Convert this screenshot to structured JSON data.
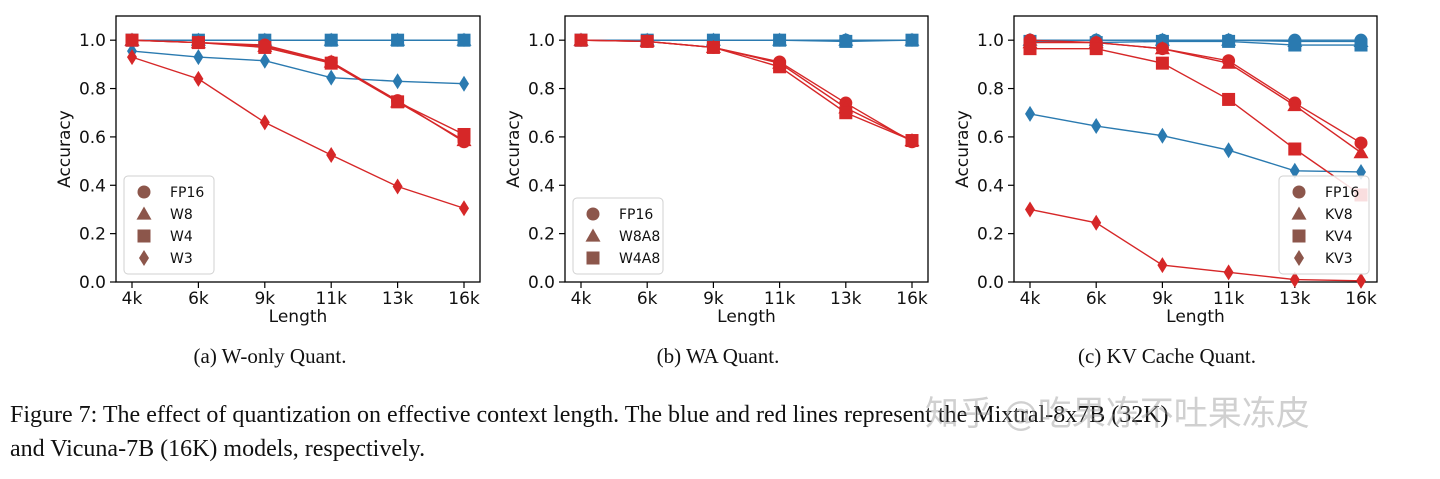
{
  "colors": {
    "blue": "#2a7ab0",
    "red": "#d62728",
    "legend_marker": "#8c564b"
  },
  "subcaptions": [
    "(a) W-only Quant.",
    "(b) WA Quant.",
    "(c) KV Cache Quant."
  ],
  "figure_caption": {
    "line1": "Figure 7: The effect of quantization on effective context length. The blue and red lines represent the Mixtral-8x7B (32K)",
    "line2": "and Vicuna-7B (16K) models, respectively."
  },
  "watermark": "知乎 @吃果冻不吐果冻皮",
  "chart_data": [
    {
      "type": "line",
      "xlabel": "Length",
      "ylabel": "Accuracy",
      "categories": [
        "4k",
        "6k",
        "9k",
        "11k",
        "13k",
        "16k"
      ],
      "yticks": [
        "0.0",
        "0.2",
        "0.4",
        "0.6",
        "0.8",
        "1.0"
      ],
      "ylim": [
        0,
        1.1
      ],
      "legend_position": "lower-left",
      "legend": [
        "FP16",
        "W8",
        "W4",
        "W3"
      ],
      "series": [
        {
          "model": "blue",
          "marker": "circle",
          "values": [
            1.0,
            1.0,
            1.0,
            1.0,
            1.0,
            1.0
          ]
        },
        {
          "model": "blue",
          "marker": "triangle",
          "values": [
            1.0,
            1.0,
            1.0,
            1.0,
            1.0,
            1.0
          ]
        },
        {
          "model": "blue",
          "marker": "square",
          "values": [
            1.0,
            1.0,
            1.0,
            1.0,
            1.0,
            1.0
          ]
        },
        {
          "model": "blue",
          "marker": "diamond",
          "values": [
            0.955,
            0.93,
            0.915,
            0.845,
            0.83,
            0.82
          ]
        },
        {
          "model": "red",
          "marker": "circle",
          "values": [
            1.0,
            0.99,
            0.98,
            0.91,
            0.75,
            0.58
          ]
        },
        {
          "model": "red",
          "marker": "triangle",
          "values": [
            1.0,
            0.99,
            0.975,
            0.91,
            0.745,
            0.585
          ]
        },
        {
          "model": "red",
          "marker": "square",
          "values": [
            1.0,
            0.99,
            0.97,
            0.905,
            0.745,
            0.61
          ]
        },
        {
          "model": "red",
          "marker": "diamond",
          "values": [
            0.93,
            0.84,
            0.66,
            0.525,
            0.395,
            0.305
          ]
        }
      ]
    },
    {
      "type": "line",
      "xlabel": "Length",
      "ylabel": "Accuracy",
      "categories": [
        "4k",
        "6k",
        "9k",
        "11k",
        "13k",
        "16k"
      ],
      "yticks": [
        "0.0",
        "0.2",
        "0.4",
        "0.6",
        "0.8",
        "1.0"
      ],
      "ylim": [
        0,
        1.1
      ],
      "legend_position": "lower-left",
      "legend": [
        "FP16",
        "W8A8",
        "W4A8"
      ],
      "series": [
        {
          "model": "blue",
          "marker": "circle",
          "values": [
            1.0,
            1.0,
            1.0,
            1.0,
            1.0,
            1.0
          ]
        },
        {
          "model": "blue",
          "marker": "triangle",
          "values": [
            1.0,
            1.0,
            1.0,
            1.0,
            1.0,
            1.0
          ]
        },
        {
          "model": "blue",
          "marker": "square",
          "values": [
            1.0,
            1.0,
            1.0,
            1.0,
            0.995,
            1.0
          ]
        },
        {
          "model": "red",
          "marker": "circle",
          "values": [
            1.0,
            0.995,
            0.97,
            0.91,
            0.74,
            0.58
          ]
        },
        {
          "model": "red",
          "marker": "triangle",
          "values": [
            1.0,
            0.995,
            0.97,
            0.905,
            0.72,
            0.585
          ]
        },
        {
          "model": "red",
          "marker": "square",
          "values": [
            1.0,
            0.995,
            0.97,
            0.89,
            0.7,
            0.585
          ]
        }
      ]
    },
    {
      "type": "line",
      "xlabel": "Length",
      "ylabel": "Accuracy",
      "categories": [
        "4k",
        "6k",
        "9k",
        "11k",
        "13k",
        "16k"
      ],
      "yticks": [
        "0.0",
        "0.2",
        "0.4",
        "0.6",
        "0.8",
        "1.0"
      ],
      "ylim": [
        0,
        1.1
      ],
      "legend_position": "lower-right",
      "legend": [
        "FP16",
        "KV8",
        "KV4",
        "KV3"
      ],
      "series": [
        {
          "model": "blue",
          "marker": "circle",
          "values": [
            1.0,
            1.0,
            1.0,
            1.0,
            1.0,
            1.0
          ]
        },
        {
          "model": "blue",
          "marker": "triangle",
          "values": [
            1.0,
            1.0,
            1.0,
            1.0,
            0.995,
            0.995
          ]
        },
        {
          "model": "blue",
          "marker": "square",
          "values": [
            0.995,
            0.99,
            0.995,
            0.995,
            0.98,
            0.98
          ]
        },
        {
          "model": "blue",
          "marker": "diamond",
          "values": [
            0.695,
            0.645,
            0.605,
            0.545,
            0.46,
            0.455
          ]
        },
        {
          "model": "red",
          "marker": "circle",
          "values": [
            1.0,
            0.99,
            0.965,
            0.915,
            0.74,
            0.575
          ]
        },
        {
          "model": "red",
          "marker": "triangle",
          "values": [
            0.99,
            0.99,
            0.965,
            0.905,
            0.73,
            0.535
          ]
        },
        {
          "model": "red",
          "marker": "square",
          "values": [
            0.965,
            0.965,
            0.905,
            0.755,
            0.55,
            0.36
          ]
        },
        {
          "model": "red",
          "marker": "diamond",
          "values": [
            0.3,
            0.245,
            0.07,
            0.04,
            0.01,
            0.005
          ]
        }
      ]
    }
  ]
}
